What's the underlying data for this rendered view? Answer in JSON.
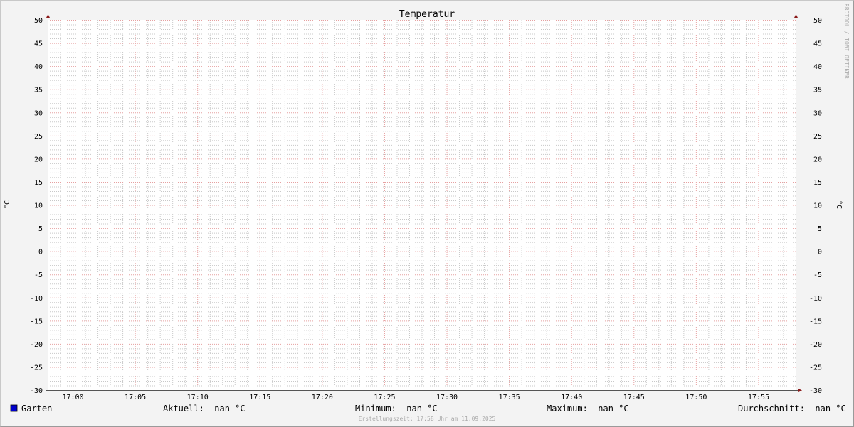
{
  "chart_data": {
    "type": "line",
    "title": "Temperatur",
    "ylabel": "°C",
    "ylabel_right": "°C",
    "ylim": [
      -30,
      50
    ],
    "yticks": [
      50,
      45,
      40,
      35,
      30,
      25,
      20,
      15,
      10,
      5,
      0,
      -5,
      -10,
      -15,
      -20,
      -25,
      -30
    ],
    "xlim": [
      "16:58",
      "17:58"
    ],
    "xticks": [
      "17:00",
      "17:05",
      "17:10",
      "17:15",
      "17:20",
      "17:25",
      "17:30",
      "17:35",
      "17:40",
      "17:45",
      "17:50",
      "17:55"
    ],
    "grid": true,
    "series": [
      {
        "name": "Garten",
        "color": "#0000cc",
        "values": []
      }
    ],
    "watermark": "RRDTOOL / TOBI OETIKER"
  },
  "legend": {
    "series_name": "Garten",
    "current": "Aktuell: -nan °C",
    "minimum": "Minimum: -nan °C",
    "maximum": "Maximum: -nan °C",
    "average": "Durchschnitt: -nan °C",
    "footer": "Erstellungszeit: 17:58 Uhr am 11.09.2025"
  },
  "colors": {
    "major_grid": "#e6a0a0",
    "minor_grid": "#c8c8c8",
    "axis": "#555555",
    "arrow": "#8b1a1a",
    "swatch": "#0000cc"
  }
}
